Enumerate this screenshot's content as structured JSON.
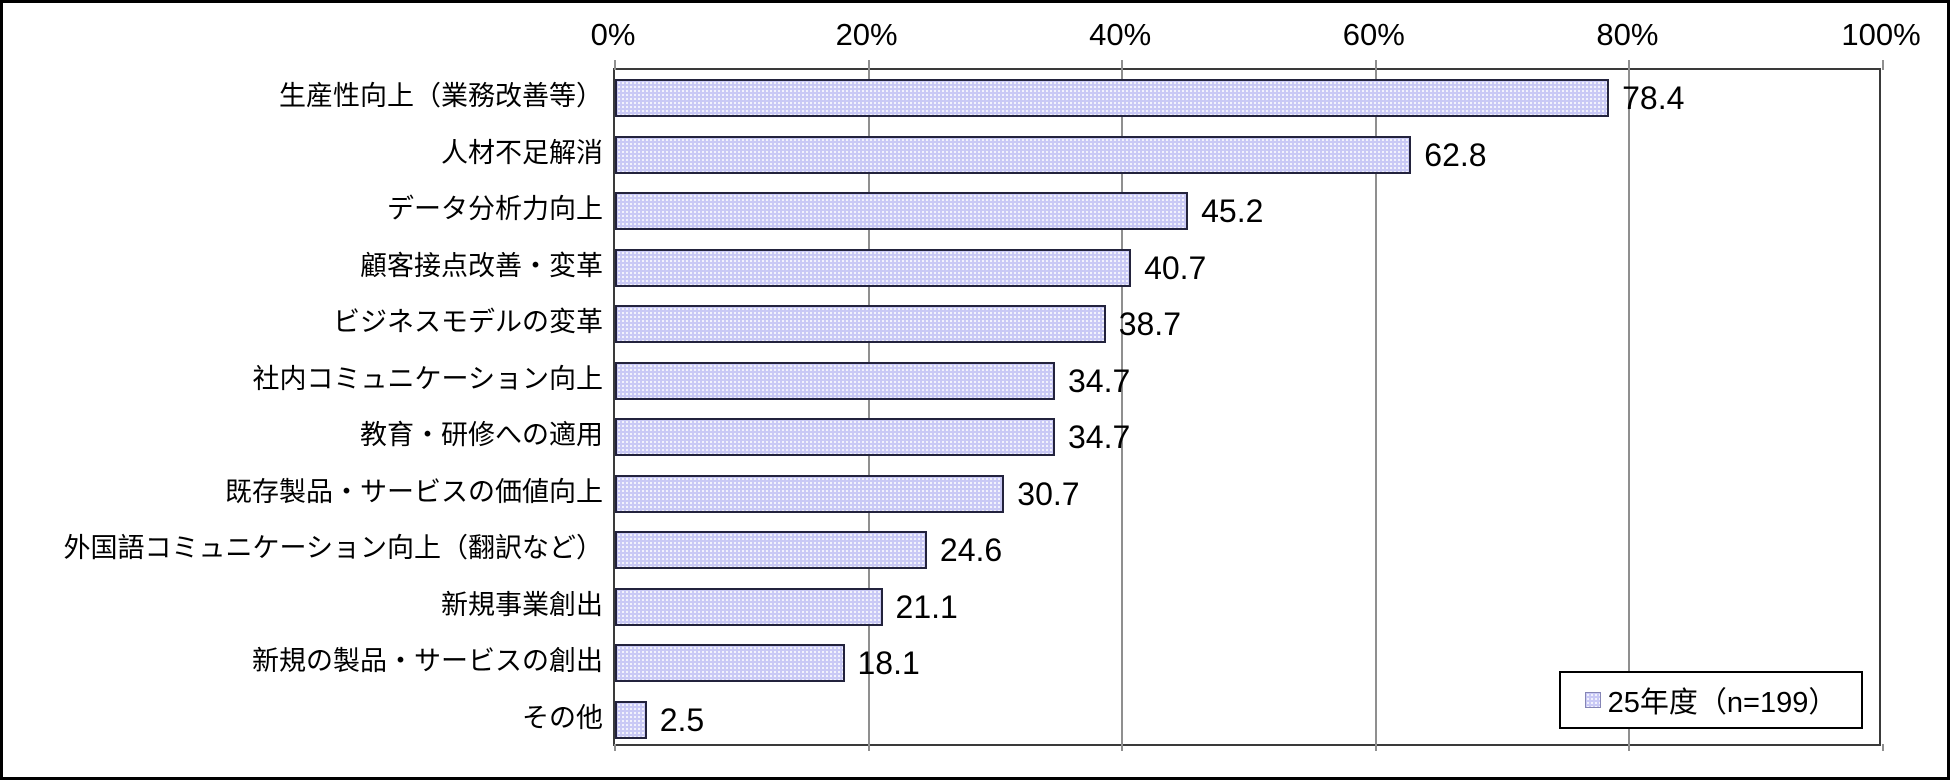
{
  "chart_data": {
    "type": "bar",
    "orientation": "horizontal",
    "title": "",
    "xlabel": "",
    "ylabel": "",
    "xlim": [
      0,
      100
    ],
    "grid": true,
    "categories": [
      "生産性向上（業務改善等）",
      "人材不足解消",
      "データ分析力向上",
      "顧客接点改善・変革",
      "ビジネスモデルの変革",
      "社内コミュニケーション向上",
      "教育・研修への適用",
      "既存製品・サービスの価値向上",
      "外国語コミュニケーション向上（翻訳など）",
      "新規事業創出",
      "新規の製品・サービスの創出",
      "その他"
    ],
    "values": [
      78.4,
      62.8,
      45.2,
      40.7,
      38.7,
      34.7,
      34.7,
      30.7,
      24.6,
      21.1,
      18.1,
      2.5
    ],
    "value_labels": [
      "78.4",
      "62.8",
      "45.2",
      "40.7",
      "38.7",
      "34.7",
      "34.7",
      "30.7",
      "24.6",
      "21.1",
      "18.1",
      "2.5"
    ],
    "x_ticks": {
      "labels": [
        "0%",
        "20%",
        "40%",
        "60%",
        "80%",
        "100%"
      ],
      "values": [
        0,
        20,
        40,
        60,
        80,
        100
      ]
    },
    "legend": {
      "label": "25年度（n=199）",
      "position": "bottom-right"
    },
    "colors": {
      "bar_fill": "#c9c9f5",
      "bar_pattern_dot": "#ffffff",
      "bar_border": "#23233d",
      "gridline": "#8f8f8f",
      "axis_border": "#3a3a3a",
      "text": "#000000",
      "background": "#ffffff",
      "outer_border": "#000000"
    }
  }
}
